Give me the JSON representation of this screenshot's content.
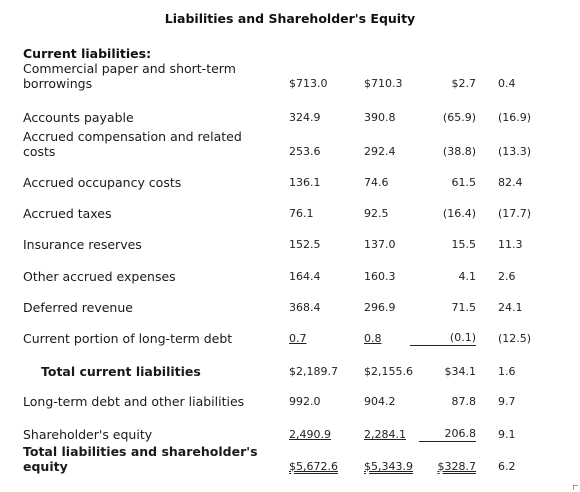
{
  "title": "Liabilities and Shareholder's Equity",
  "section_heading": "Current liabilities:",
  "rows": [
    {
      "label_1": "Commercial paper and short-term",
      "label_2": "borrowings",
      "c1": "$713.0",
      "c2": "$710.3",
      "c3": "$2.7",
      "c4": "0.4"
    },
    {
      "label_1": "Accounts payable",
      "label_2": "",
      "c1": "324.9",
      "c2": "390.8",
      "c3": "(65.9)",
      "c4": "(16.9)"
    },
    {
      "label_1": "Accrued compensation and related",
      "label_2": "costs",
      "c1": "253.6",
      "c2": "292.4",
      "c3": "(38.8)",
      "c4": "(13.3)"
    },
    {
      "label_1": "Accrued occupancy costs",
      "c1": "136.1",
      "c2": "74.6",
      "c3": "61.5",
      "c4": "82.4"
    },
    {
      "label_1": "Accrued taxes",
      "c1": "76.1",
      "c2": "92.5",
      "c3": "(16.4)",
      "c4": "(17.7)"
    },
    {
      "label_1": "Insurance reserves",
      "c1": "152.5",
      "c2": "137.0",
      "c3": "15.5",
      "c4": "11.3"
    },
    {
      "label_1": "Other accrued expenses",
      "c1": "164.4",
      "c2": "160.3",
      "c3": "4.1",
      "c4": "2.6"
    },
    {
      "label_1": "Deferred revenue",
      "c1": "368.4",
      "c2": "296.9",
      "c3": "71.5",
      "c4": "24.1"
    },
    {
      "label_1": "Current portion of long-term debt",
      "c1": "0.7",
      "c2": "0.8",
      "c3": "(0.1)",
      "c4": "(12.5)"
    },
    {
      "label_1": "Total current liabilities",
      "c1": "$2,189.7",
      "c2": "$2,155.6",
      "c3": "$34.1",
      "c4": "1.6"
    },
    {
      "label_1": "Long-term debt and other liabilities",
      "c1": "992.0",
      "c2": "904.2",
      "c3": "87.8",
      "c4": "9.7"
    },
    {
      "label_1": "Shareholder's equity",
      "c1": "2,490.9",
      "c2": "2,284.1",
      "c3": "206.8",
      "c4": "9.1"
    },
    {
      "label_1": "Total liabilities and shareholder's equity",
      "c1": "$5,672.6",
      "c2": "$5,343.9",
      "c3": "$328.7",
      "c4": "6.2"
    }
  ]
}
